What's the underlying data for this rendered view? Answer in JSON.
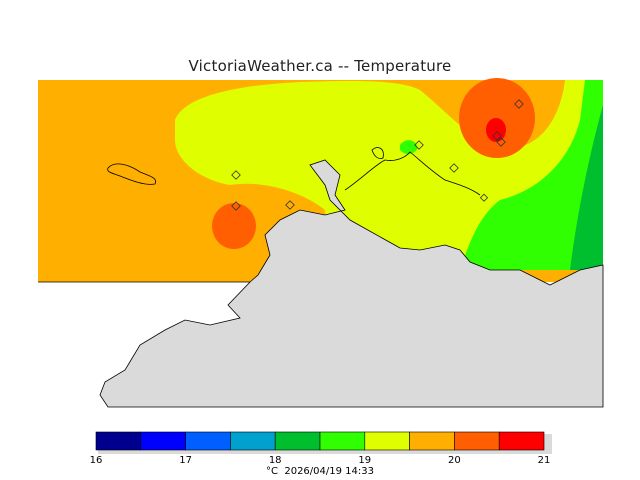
{
  "title": "VictoriaWeather.ca  --  Temperature",
  "legend": {
    "ticks": [
      "16",
      "17",
      "18",
      "19",
      "20",
      "21"
    ],
    "colors": [
      "#00008f",
      "#0000ff",
      "#005fff",
      "#00a0cf",
      "#00bf2f",
      "#2fff00",
      "#dfff00",
      "#ffaf00",
      "#ff5f00",
      "#ff0000"
    ],
    "unit": "°C",
    "timestamp": "2026/04/19 14:33"
  },
  "map_colors": {
    "land_gray": "#dadada",
    "ocean_base": "#ffaf00",
    "c19_20": "#ffaf00",
    "c18_19": "#dfff00",
    "c17_18": "#2fff00",
    "c16_17": "#00bf2f",
    "c20_21": "#ff5f00",
    "c21_plus": "#ff0000"
  },
  "stations": [
    {
      "id": "station-1"
    },
    {
      "id": "station-2"
    },
    {
      "id": "station-3"
    },
    {
      "id": "station-4"
    },
    {
      "id": "station-5"
    },
    {
      "id": "station-6"
    },
    {
      "id": "station-7"
    },
    {
      "id": "station-8"
    },
    {
      "id": "station-9"
    },
    {
      "id": "station-10"
    }
  ]
}
